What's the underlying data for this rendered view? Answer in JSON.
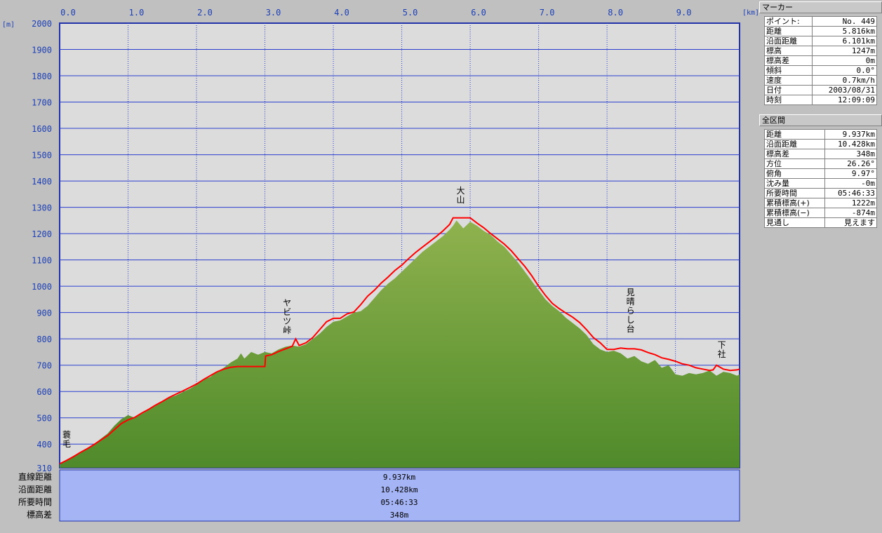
{
  "chart_data": {
    "type": "area",
    "x_unit": "[km]",
    "y_unit": "[m]",
    "xlim": [
      0,
      9.937
    ],
    "ylim": [
      310,
      2000
    ],
    "x_ticks": [
      0.0,
      1.0,
      2.0,
      3.0,
      4.0,
      5.0,
      6.0,
      7.0,
      8.0,
      9.0
    ],
    "x_tick_labels": [
      "0.0",
      "1.0",
      "2.0",
      "3.0",
      "4.0",
      "5.0",
      "6.0",
      "7.0",
      "8.0",
      "9.0"
    ],
    "y_ticks": [
      400,
      500,
      600,
      700,
      800,
      900,
      1000,
      1100,
      1200,
      1300,
      1400,
      1500,
      1600,
      1700,
      1800,
      1900,
      2000
    ],
    "y_tick_labels": [
      "400",
      "500",
      "600",
      "700",
      "800",
      "900",
      "1000",
      "1100",
      "1200",
      "1300",
      "1400",
      "1500",
      "1600",
      "1700",
      "1800",
      "1900",
      "2000"
    ],
    "y_min_label": "310",
    "grid": true,
    "series": [
      {
        "kind": "terrain",
        "color": "#6a9e3c",
        "x": [
          0,
          0.1,
          0.2,
          0.3,
          0.4,
          0.5,
          0.6,
          0.7,
          0.8,
          0.9,
          1.0,
          1.1,
          1.2,
          1.3,
          1.4,
          1.5,
          1.6,
          1.7,
          1.8,
          1.9,
          2.0,
          2.1,
          2.2,
          2.3,
          2.4,
          2.5,
          2.6,
          2.65,
          2.7,
          2.8,
          2.9,
          3.0,
          3.1,
          3.2,
          3.3,
          3.4,
          3.5,
          3.6,
          3.7,
          3.8,
          3.9,
          4.0,
          4.1,
          4.2,
          4.3,
          4.4,
          4.5,
          4.6,
          4.7,
          4.8,
          4.9,
          5.0,
          5.1,
          5.2,
          5.3,
          5.4,
          5.5,
          5.6,
          5.7,
          5.75,
          5.8,
          5.9,
          6.0,
          6.1,
          6.2,
          6.3,
          6.4,
          6.5,
          6.6,
          6.7,
          6.8,
          6.9,
          7.0,
          7.1,
          7.2,
          7.3,
          7.4,
          7.5,
          7.6,
          7.7,
          7.8,
          7.9,
          8.0,
          8.1,
          8.2,
          8.3,
          8.4,
          8.5,
          8.6,
          8.7,
          8.8,
          8.9,
          9.0,
          9.1,
          9.2,
          9.3,
          9.4,
          9.5,
          9.6,
          9.7,
          9.8,
          9.9,
          9.937
        ],
        "y": [
          325,
          340,
          355,
          370,
          385,
          400,
          420,
          440,
          470,
          495,
          510,
          500,
          515,
          530,
          545,
          560,
          575,
          585,
          598,
          610,
          625,
          645,
          655,
          675,
          690,
          710,
          725,
          745,
          725,
          750,
          740,
          750,
          745,
          760,
          770,
          775,
          770,
          780,
          800,
          820,
          845,
          865,
          870,
          885,
          900,
          905,
          925,
          955,
          985,
          1010,
          1030,
          1055,
          1080,
          1105,
          1130,
          1150,
          1170,
          1190,
          1215,
          1230,
          1250,
          1220,
          1245,
          1230,
          1210,
          1195,
          1170,
          1150,
          1120,
          1090,
          1055,
          1020,
          985,
          950,
          925,
          905,
          880,
          860,
          840,
          815,
          780,
          760,
          750,
          755,
          745,
          725,
          735,
          715,
          705,
          720,
          690,
          700,
          665,
          660,
          670,
          665,
          670,
          680,
          660,
          675,
          670,
          660,
          665
        ]
      },
      {
        "kind": "track",
        "color": "#ff0000",
        "x": [
          0,
          0.1,
          0.2,
          0.3,
          0.4,
          0.5,
          0.6,
          0.7,
          0.8,
          0.9,
          1.0,
          1.1,
          1.2,
          1.3,
          1.4,
          1.5,
          1.6,
          1.7,
          1.8,
          1.9,
          2.0,
          2.1,
          2.2,
          2.3,
          2.4,
          2.5,
          2.6,
          2.7,
          2.8,
          2.9,
          3.0,
          3.01,
          3.1,
          3.2,
          3.3,
          3.4,
          3.45,
          3.5,
          3.6,
          3.7,
          3.8,
          3.9,
          4.0,
          4.1,
          4.2,
          4.3,
          4.4,
          4.5,
          4.6,
          4.7,
          4.8,
          4.9,
          5.0,
          5.1,
          5.2,
          5.3,
          5.4,
          5.5,
          5.6,
          5.7,
          5.75,
          5.8,
          5.85,
          5.9,
          6.0,
          6.1,
          6.2,
          6.3,
          6.4,
          6.5,
          6.6,
          6.7,
          6.8,
          6.9,
          7.0,
          7.1,
          7.2,
          7.3,
          7.4,
          7.5,
          7.6,
          7.7,
          7.8,
          7.9,
          8.0,
          8.1,
          8.2,
          8.3,
          8.4,
          8.5,
          8.6,
          8.7,
          8.8,
          8.9,
          9.0,
          9.1,
          9.2,
          9.3,
          9.4,
          9.5,
          9.55,
          9.6,
          9.7,
          9.8,
          9.9,
          9.937
        ],
        "y": [
          325,
          338,
          352,
          368,
          382,
          398,
          415,
          432,
          455,
          478,
          492,
          502,
          518,
          532,
          548,
          562,
          577,
          590,
          602,
          615,
          628,
          645,
          660,
          675,
          685,
          692,
          695,
          695,
          695,
          695,
          695,
          735,
          740,
          752,
          762,
          772,
          800,
          775,
          785,
          805,
          835,
          865,
          878,
          878,
          895,
          902,
          930,
          962,
          985,
          1012,
          1035,
          1060,
          1080,
          1105,
          1128,
          1148,
          1168,
          1188,
          1210,
          1235,
          1260,
          1260,
          1260,
          1260,
          1260,
          1240,
          1222,
          1200,
          1180,
          1160,
          1135,
          1105,
          1075,
          1040,
          1000,
          965,
          935,
          915,
          898,
          882,
          862,
          835,
          805,
          785,
          760,
          760,
          765,
          762,
          762,
          758,
          748,
          740,
          728,
          722,
          715,
          705,
          700,
          690,
          685,
          680,
          682,
          700,
          685,
          680,
          682,
          685
        ]
      }
    ],
    "waypoints": [
      {
        "name": "蓑毛",
        "x": 0.02
      },
      {
        "name": "ヤビツ峠",
        "x": 3.18
      },
      {
        "name": "大山",
        "x": 5.82
      },
      {
        "name": "見晴らし台",
        "x": 8.2
      },
      {
        "name": "下社",
        "x": 9.8
      }
    ],
    "summary_rows": [
      {
        "label": "直線距離",
        "value": "9.937km"
      },
      {
        "label": "沿面距離",
        "value": "10.428km"
      },
      {
        "label": "所要時間",
        "value": "05:46:33"
      },
      {
        "label": "標高差",
        "value": "348m"
      }
    ]
  },
  "marker_panel": {
    "title": "マーカー",
    "rows": [
      {
        "label": "ポイント:",
        "value": "No. 449"
      },
      {
        "label": "距離",
        "value": "5.816km"
      },
      {
        "label": "沿面距離",
        "value": "6.101km"
      },
      {
        "label": "標高",
        "value": "1247m"
      },
      {
        "label": "標高差",
        "value": "0m"
      },
      {
        "label": "傾斜",
        "value": "0.0°"
      },
      {
        "label": "速度",
        "value": "0.7km/h"
      },
      {
        "label": "日付",
        "value": "2003/08/31"
      },
      {
        "label": "時刻",
        "value": "12:09:09"
      }
    ]
  },
  "section_panel": {
    "title": "全区間",
    "rows": [
      {
        "label": "距離",
        "value": "9.937km"
      },
      {
        "label": "沿面距離",
        "value": "10.428km"
      },
      {
        "label": "標高差",
        "value": "348m"
      },
      {
        "label": "方位",
        "value": "26.26°"
      },
      {
        "label": "俯角",
        "value": "9.97°"
      },
      {
        "label": "沈み量",
        "value": "-0m"
      },
      {
        "label": "所要時間",
        "value": "05:46:33"
      },
      {
        "label": "累積標高(+)",
        "value": "1222m"
      },
      {
        "label": "累積標高(−)",
        "value": "-874m"
      },
      {
        "label": "見通し",
        "value": "見えます"
      }
    ]
  }
}
